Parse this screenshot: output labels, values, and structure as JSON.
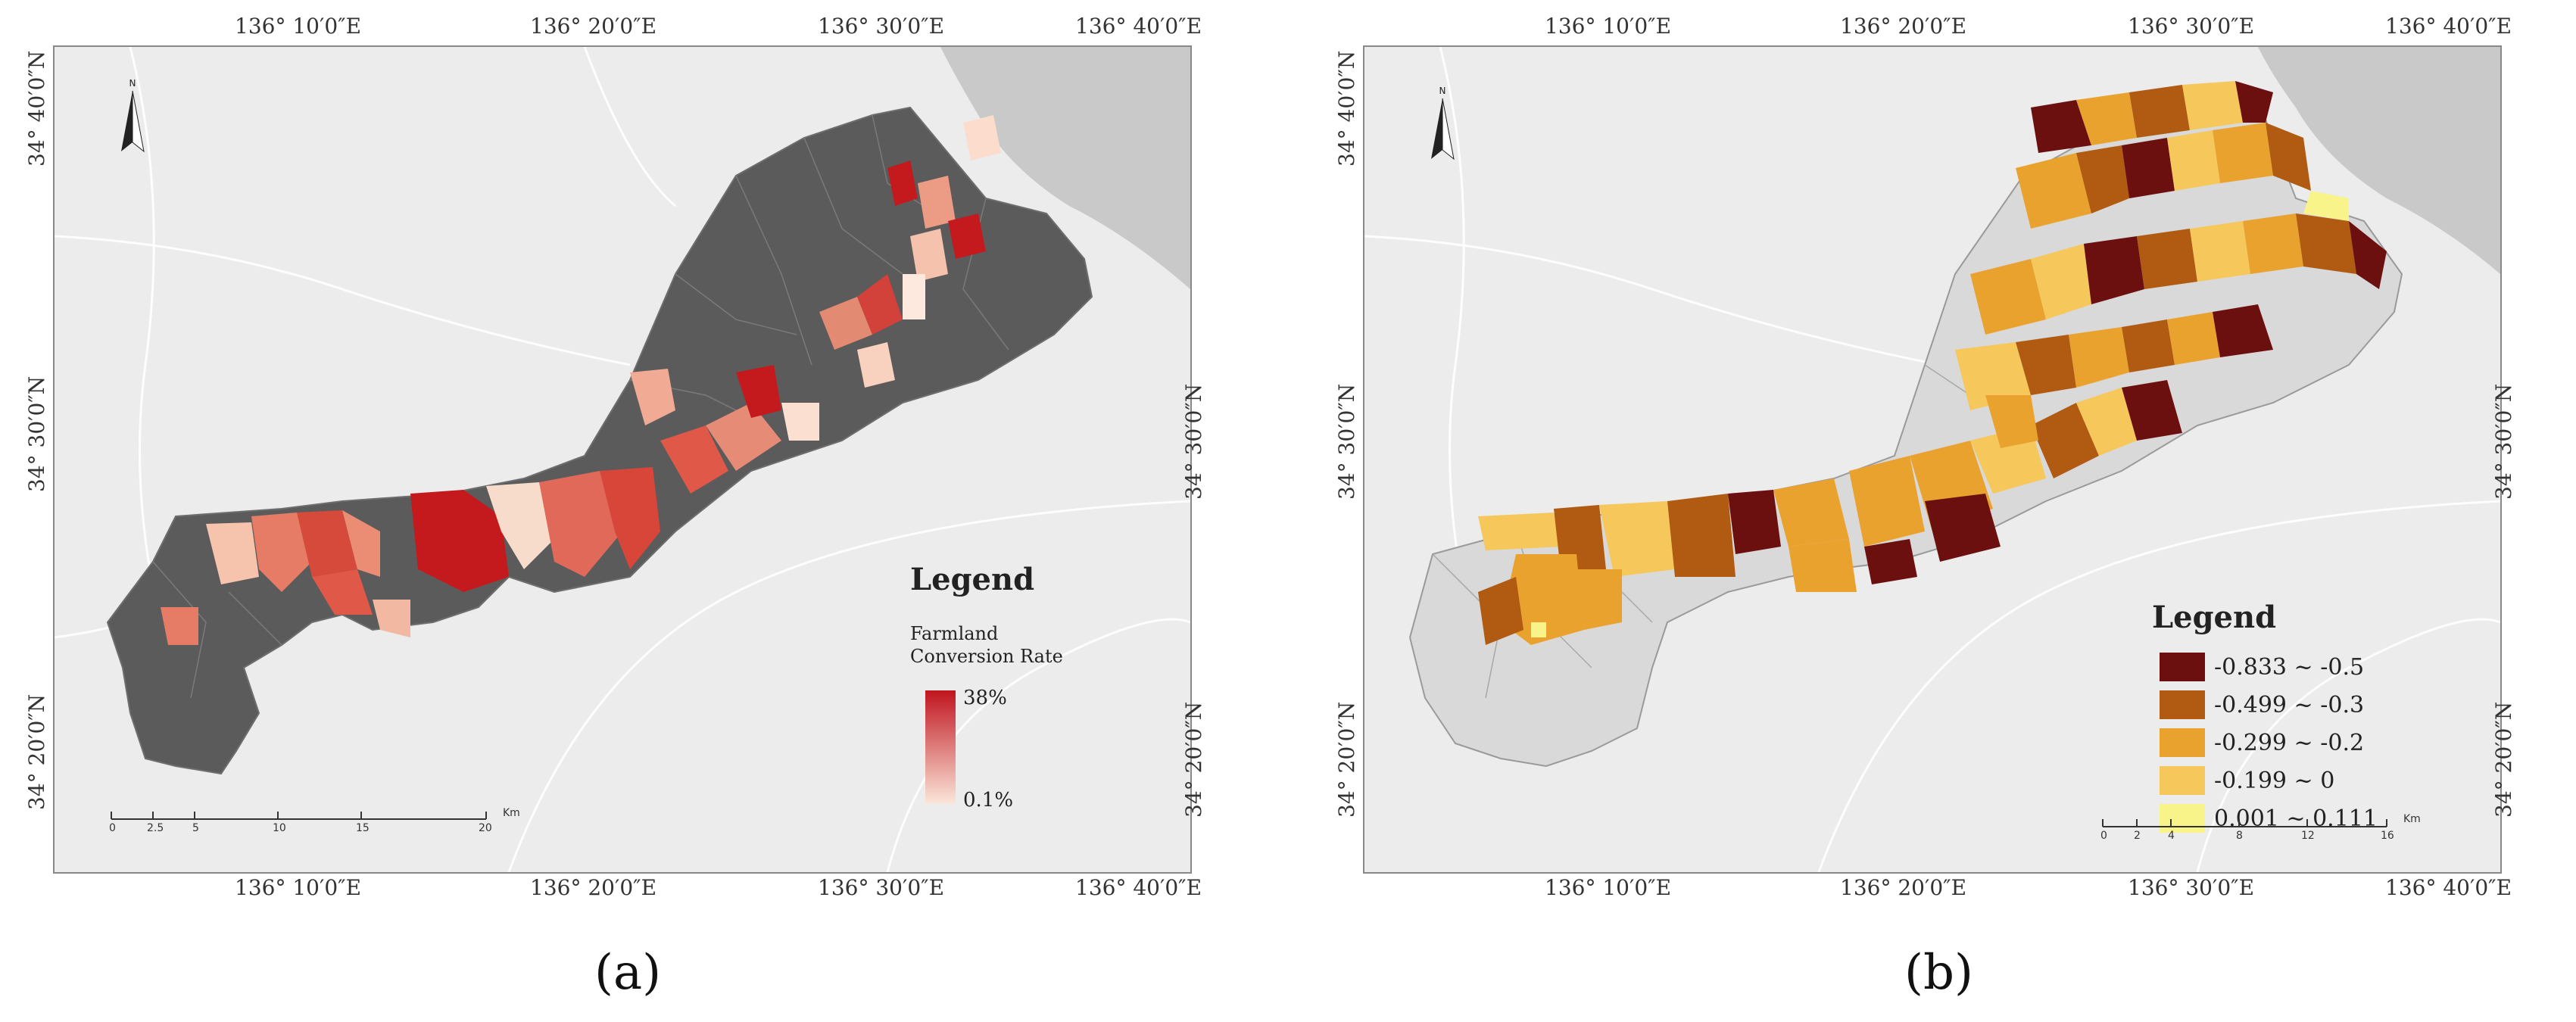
{
  "panels": {
    "a": {
      "caption": "(a)",
      "lon_top": [
        "136°  10′0″E",
        "136°  20′0″E",
        "136°  30′0″E",
        "136°  40′0″E"
      ],
      "lon_bottom": [
        "136°  10′0″E",
        "136°  20′0″E",
        "136°  30′0″E",
        "136°  40′0″E"
      ],
      "lat_left": [
        "34°  40′0″N",
        "34°  30′0″N",
        "34°  20′0″N"
      ],
      "lat_right": [
        "34°  30′0″N",
        "34°  20′0″N"
      ],
      "legend": {
        "title": "Legend",
        "subtitle_line1": "Farmland",
        "subtitle_line2": "Conversion Rate",
        "max_label": "38%",
        "min_label": "0.1%",
        "gradient_top": "#c0141e",
        "gradient_bottom": "#fbe7da"
      },
      "scale": {
        "labels": [
          "0",
          "2.5",
          "5",
          "10",
          "15",
          "20"
        ],
        "unit": "Km"
      }
    },
    "b": {
      "caption": "(b)",
      "lon_top": [
        "136°  10′0″E",
        "136°  20′0″E",
        "136°  30′0″E",
        "136°  40′0″E"
      ],
      "lon_bottom": [
        "136°  10′0″E",
        "136°  20′0″E",
        "136°  30′0″E",
        "136°  40′0″E"
      ],
      "lat_left": [
        "34°  40′0″N",
        "34°  30′0″N",
        "34°  20′0″N"
      ],
      "lat_right": [
        "34°  30′0″N",
        "34°  20′0″N"
      ],
      "legend": {
        "title": "Legend",
        "classes": [
          {
            "label": "-0.833 ~ -0.5",
            "color": "#6b0f0f"
          },
          {
            "label": "-0.499 ~ -0.3",
            "color": "#b05a12"
          },
          {
            "label": "-0.299 ~ -0.2",
            "color": "#eaa22e"
          },
          {
            "label": "-0.199 ~ 0",
            "color": "#f6c75a"
          },
          {
            "label": "0.001 ~ 0.111",
            "color": "#f8f48a"
          }
        ]
      },
      "scale": {
        "labels": [
          "0",
          "2",
          "4",
          "8",
          "12",
          "16"
        ],
        "unit": "Km"
      }
    }
  },
  "colors": {
    "basemap": "#ececec",
    "sea": "#c9c9c9",
    "unchanged_region": "#5b5b5b",
    "outside_region": "#d9d9d9"
  }
}
